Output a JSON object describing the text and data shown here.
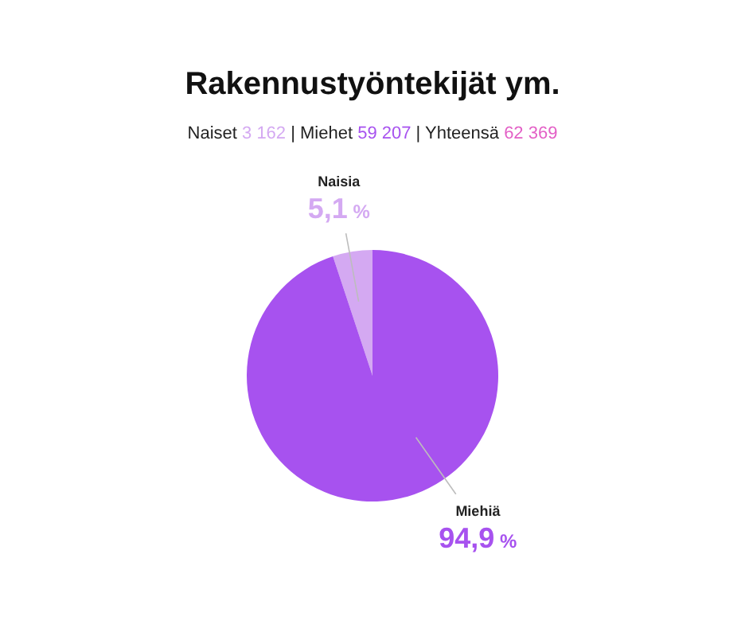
{
  "chart_data": {
    "type": "pie",
    "title": "Rakennustyöntekijät ym.",
    "subtitle": "Naiset 3 162 | Miehet 59 207 | Yhteensä 62 369",
    "categories": [
      "Naisia",
      "Miehiä"
    ],
    "values": [
      5.1,
      94.9
    ],
    "colors": [
      "#d4a9f2",
      "#a752ef"
    ],
    "value_labels": [
      "5,1 %",
      "94,9 %"
    ]
  }
}
